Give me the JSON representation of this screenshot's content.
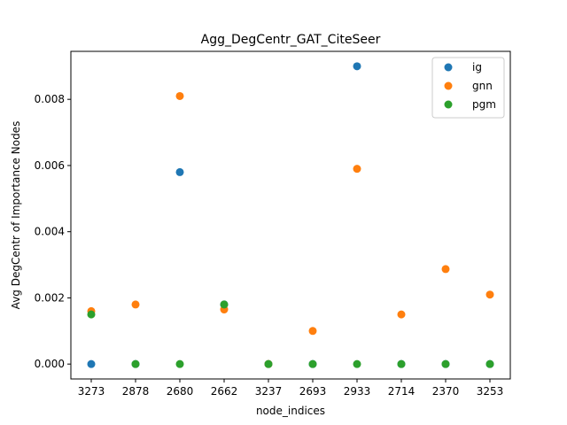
{
  "chart_data": {
    "type": "scatter",
    "title": "Agg_DegCentr_GAT_CiteSeer",
    "xlabel": "node_indices",
    "ylabel": "Avg DegCentr of Importance Nodes",
    "categories": [
      "3273",
      "2878",
      "2680",
      "2662",
      "3237",
      "2693",
      "2933",
      "2714",
      "2370",
      "3253"
    ],
    "ylim": [
      -0.00045,
      0.00945
    ],
    "yticks": [
      0.0,
      0.002,
      0.004,
      0.006,
      0.008
    ],
    "ytick_labels": [
      "0.000",
      "0.002",
      "0.004",
      "0.006",
      "0.008"
    ],
    "grid": false,
    "legend_position": "top-right",
    "series": [
      {
        "name": "ig",
        "color": "#1f77b4",
        "values": [
          0.0,
          0.0,
          0.0058,
          0.0018,
          0.0,
          0.0,
          0.009,
          0.0,
          0.0,
          0.0
        ]
      },
      {
        "name": "gnn",
        "color": "#ff7f0e",
        "values": [
          0.0016,
          0.0018,
          0.0081,
          0.00165,
          0.0,
          0.001,
          0.0059,
          0.0015,
          0.00287,
          0.0021
        ]
      },
      {
        "name": "pgm",
        "color": "#2ca02c",
        "values": [
          0.0015,
          0.0,
          0.0,
          0.0018,
          0.0,
          0.0,
          0.0,
          0.0,
          0.0,
          0.0
        ]
      }
    ]
  }
}
